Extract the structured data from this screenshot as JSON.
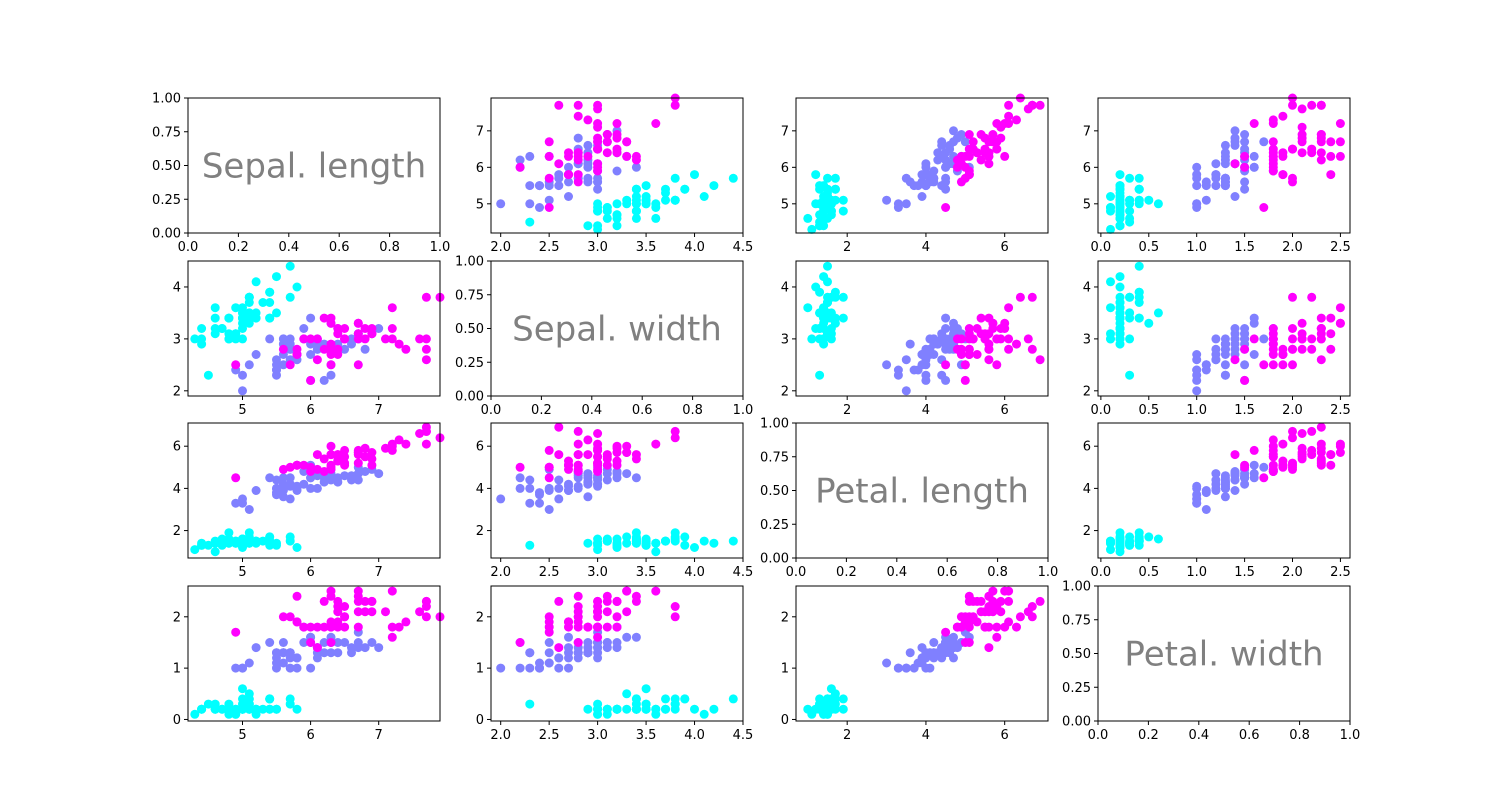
{
  "chart_data": {
    "type": "scatter",
    "layout": "4x4 scatter matrix",
    "variables": [
      "Sepal. length",
      "Sepal. width",
      "Petal. length",
      "Petal. width"
    ],
    "class_colors": [
      "#00ffff",
      "#8080ff",
      "#ff00ff"
    ],
    "diagonal_axis": {
      "xlim": [
        0,
        1
      ],
      "ylim": [
        0,
        1
      ],
      "xticks": [
        "0.0",
        "0.2",
        "0.4",
        "0.6",
        "0.8",
        "1.0"
      ],
      "yticks": [
        "0.00",
        "0.25",
        "0.50",
        "0.75",
        "1.00"
      ]
    },
    "axes": {
      "sepal_length": {
        "lim": [
          4.2,
          7.9
        ],
        "ticks": [
          5,
          6,
          7
        ],
        "labels": [
          "5",
          "6",
          "7"
        ]
      },
      "sepal_width": {
        "lim": [
          1.9,
          4.5
        ],
        "ticks": [
          2.0,
          2.5,
          3.0,
          3.5,
          4.0,
          4.5
        ],
        "labels": [
          "2.0",
          "2.5",
          "3.0",
          "3.5",
          "4.0",
          "4.5"
        ]
      },
      "sepal_width_y": {
        "lim": [
          1.9,
          4.5
        ],
        "ticks": [
          2,
          3,
          4
        ],
        "labels": [
          "2",
          "3",
          "4"
        ]
      },
      "petal_length": {
        "lim": [
          0.7,
          7.1
        ],
        "ticks": [
          2,
          4,
          6
        ],
        "labels": [
          "2",
          "4",
          "6"
        ]
      },
      "petal_width": {
        "lim": [
          -0.03,
          2.6
        ],
        "ticks": [
          0.0,
          0.5,
          1.0,
          1.5,
          2.0,
          2.5
        ],
        "labels": [
          "0.0",
          "0.5",
          "1.0",
          "1.5",
          "2.0",
          "2.5"
        ]
      },
      "petal_width_y": {
        "lim": [
          -0.03,
          2.6
        ],
        "ticks": [
          0,
          1,
          2
        ],
        "labels": [
          "0",
          "1",
          "2"
        ]
      }
    },
    "classes": [
      [
        [
          5.1,
          3.5,
          1.4,
          0.2
        ],
        [
          4.9,
          3.0,
          1.4,
          0.2
        ],
        [
          4.7,
          3.2,
          1.3,
          0.2
        ],
        [
          4.6,
          3.1,
          1.5,
          0.2
        ],
        [
          5.0,
          3.6,
          1.4,
          0.2
        ],
        [
          5.4,
          3.9,
          1.7,
          0.4
        ],
        [
          4.6,
          3.4,
          1.4,
          0.3
        ],
        [
          5.0,
          3.4,
          1.5,
          0.2
        ],
        [
          4.4,
          2.9,
          1.4,
          0.2
        ],
        [
          4.9,
          3.1,
          1.5,
          0.1
        ],
        [
          5.4,
          3.7,
          1.5,
          0.2
        ],
        [
          4.8,
          3.4,
          1.6,
          0.2
        ],
        [
          4.8,
          3.0,
          1.4,
          0.1
        ],
        [
          4.3,
          3.0,
          1.1,
          0.1
        ],
        [
          5.8,
          4.0,
          1.2,
          0.2
        ],
        [
          5.7,
          4.4,
          1.5,
          0.4
        ],
        [
          5.4,
          3.9,
          1.3,
          0.4
        ],
        [
          5.1,
          3.5,
          1.4,
          0.3
        ],
        [
          5.7,
          3.8,
          1.7,
          0.3
        ],
        [
          5.1,
          3.8,
          1.5,
          0.3
        ],
        [
          5.4,
          3.4,
          1.7,
          0.2
        ],
        [
          5.1,
          3.7,
          1.5,
          0.4
        ],
        [
          4.6,
          3.6,
          1.0,
          0.2
        ],
        [
          5.1,
          3.3,
          1.7,
          0.5
        ],
        [
          4.8,
          3.4,
          1.9,
          0.2
        ],
        [
          5.0,
          3.0,
          1.6,
          0.2
        ],
        [
          5.0,
          3.4,
          1.6,
          0.4
        ],
        [
          5.2,
          3.5,
          1.5,
          0.2
        ],
        [
          5.2,
          3.4,
          1.4,
          0.2
        ],
        [
          4.7,
          3.2,
          1.6,
          0.2
        ],
        [
          4.8,
          3.1,
          1.6,
          0.2
        ],
        [
          5.4,
          3.4,
          1.5,
          0.4
        ],
        [
          5.2,
          4.1,
          1.5,
          0.1
        ],
        [
          5.5,
          4.2,
          1.4,
          0.2
        ],
        [
          4.9,
          3.1,
          1.5,
          0.2
        ],
        [
          5.0,
          3.2,
          1.2,
          0.2
        ],
        [
          5.5,
          3.5,
          1.3,
          0.2
        ],
        [
          4.9,
          3.6,
          1.4,
          0.1
        ],
        [
          4.4,
          3.0,
          1.3,
          0.2
        ],
        [
          5.1,
          3.4,
          1.5,
          0.2
        ],
        [
          5.0,
          3.5,
          1.3,
          0.3
        ],
        [
          4.5,
          2.3,
          1.3,
          0.3
        ],
        [
          4.4,
          3.2,
          1.3,
          0.2
        ],
        [
          5.0,
          3.5,
          1.6,
          0.6
        ],
        [
          5.1,
          3.8,
          1.9,
          0.4
        ],
        [
          4.8,
          3.0,
          1.4,
          0.3
        ],
        [
          5.1,
          3.8,
          1.6,
          0.2
        ],
        [
          4.6,
          3.2,
          1.4,
          0.2
        ],
        [
          5.3,
          3.7,
          1.5,
          0.2
        ],
        [
          5.0,
          3.3,
          1.4,
          0.2
        ]
      ],
      [
        [
          7.0,
          3.2,
          4.7,
          1.4
        ],
        [
          6.4,
          3.2,
          4.5,
          1.5
        ],
        [
          6.9,
          3.1,
          4.9,
          1.5
        ],
        [
          5.5,
          2.3,
          4.0,
          1.3
        ],
        [
          6.5,
          2.8,
          4.6,
          1.5
        ],
        [
          5.7,
          2.8,
          4.5,
          1.3
        ],
        [
          6.3,
          3.3,
          4.7,
          1.6
        ],
        [
          4.9,
          2.4,
          3.3,
          1.0
        ],
        [
          6.6,
          2.9,
          4.6,
          1.3
        ],
        [
          5.2,
          2.7,
          3.9,
          1.4
        ],
        [
          5.0,
          2.0,
          3.5,
          1.0
        ],
        [
          5.9,
          3.0,
          4.2,
          1.5
        ],
        [
          6.0,
          2.2,
          4.0,
          1.0
        ],
        [
          6.1,
          2.9,
          4.7,
          1.4
        ],
        [
          5.6,
          2.9,
          3.6,
          1.3
        ],
        [
          6.7,
          3.1,
          4.4,
          1.4
        ],
        [
          5.6,
          3.0,
          4.5,
          1.5
        ],
        [
          5.8,
          2.7,
          4.1,
          1.0
        ],
        [
          6.2,
          2.2,
          4.5,
          1.5
        ],
        [
          5.6,
          2.5,
          3.9,
          1.1
        ],
        [
          5.9,
          3.2,
          4.8,
          1.8
        ],
        [
          6.1,
          2.8,
          4.0,
          1.3
        ],
        [
          6.3,
          2.5,
          4.9,
          1.5
        ],
        [
          6.1,
          2.8,
          4.7,
          1.2
        ],
        [
          6.4,
          2.9,
          4.3,
          1.3
        ],
        [
          6.6,
          3.0,
          4.4,
          1.4
        ],
        [
          6.8,
          2.8,
          4.8,
          1.4
        ],
        [
          6.7,
          3.0,
          5.0,
          1.7
        ],
        [
          6.0,
          2.9,
          4.5,
          1.5
        ],
        [
          5.7,
          2.6,
          3.5,
          1.0
        ],
        [
          5.5,
          2.4,
          3.8,
          1.1
        ],
        [
          5.5,
          2.4,
          3.7,
          1.0
        ],
        [
          5.8,
          2.7,
          3.9,
          1.2
        ],
        [
          6.0,
          2.7,
          5.1,
          1.6
        ],
        [
          5.4,
          3.0,
          4.5,
          1.5
        ],
        [
          6.0,
          3.4,
          4.5,
          1.6
        ],
        [
          6.7,
          3.1,
          4.7,
          1.5
        ],
        [
          6.3,
          2.3,
          4.4,
          1.3
        ],
        [
          5.6,
          3.0,
          4.1,
          1.3
        ],
        [
          5.5,
          2.5,
          4.0,
          1.3
        ],
        [
          5.5,
          2.6,
          4.4,
          1.2
        ],
        [
          6.1,
          3.0,
          4.6,
          1.4
        ],
        [
          5.8,
          2.6,
          4.0,
          1.2
        ],
        [
          5.0,
          2.3,
          3.3,
          1.0
        ],
        [
          5.6,
          2.7,
          4.2,
          1.3
        ],
        [
          5.7,
          3.0,
          4.2,
          1.2
        ],
        [
          5.7,
          2.9,
          4.2,
          1.3
        ],
        [
          6.2,
          2.9,
          4.3,
          1.3
        ],
        [
          5.1,
          2.5,
          3.0,
          1.1
        ],
        [
          5.7,
          2.8,
          4.1,
          1.3
        ]
      ],
      [
        [
          6.3,
          3.3,
          6.0,
          2.5
        ],
        [
          5.8,
          2.7,
          5.1,
          1.9
        ],
        [
          7.1,
          3.0,
          5.9,
          2.1
        ],
        [
          6.3,
          2.9,
          5.6,
          1.8
        ],
        [
          6.5,
          3.0,
          5.8,
          2.2
        ],
        [
          7.6,
          3.0,
          6.6,
          2.1
        ],
        [
          4.9,
          2.5,
          4.5,
          1.7
        ],
        [
          7.3,
          2.9,
          6.3,
          1.8
        ],
        [
          6.7,
          2.5,
          5.8,
          1.8
        ],
        [
          7.2,
          3.6,
          6.1,
          2.5
        ],
        [
          6.5,
          3.2,
          5.1,
          2.0
        ],
        [
          6.4,
          2.7,
          5.3,
          1.9
        ],
        [
          6.8,
          3.0,
          5.5,
          2.1
        ],
        [
          5.7,
          2.5,
          5.0,
          2.0
        ],
        [
          5.8,
          2.8,
          5.1,
          2.4
        ],
        [
          6.4,
          3.2,
          5.3,
          2.3
        ],
        [
          6.5,
          3.0,
          5.5,
          1.8
        ],
        [
          7.7,
          3.8,
          6.7,
          2.2
        ],
        [
          7.7,
          2.6,
          6.9,
          2.3
        ],
        [
          6.0,
          2.2,
          5.0,
          1.5
        ],
        [
          6.9,
          3.2,
          5.7,
          2.3
        ],
        [
          5.6,
          2.8,
          4.9,
          2.0
        ],
        [
          7.7,
          2.8,
          6.7,
          2.0
        ],
        [
          6.3,
          2.7,
          4.9,
          1.8
        ],
        [
          6.7,
          3.3,
          5.7,
          2.1
        ],
        [
          7.2,
          3.2,
          6.0,
          1.8
        ],
        [
          6.2,
          2.8,
          4.8,
          1.8
        ],
        [
          6.1,
          3.0,
          4.9,
          1.8
        ],
        [
          6.4,
          2.8,
          5.6,
          2.1
        ],
        [
          7.2,
          3.0,
          5.8,
          1.6
        ],
        [
          7.4,
          2.8,
          6.1,
          1.9
        ],
        [
          7.9,
          3.8,
          6.4,
          2.0
        ],
        [
          6.4,
          2.8,
          5.6,
          2.2
        ],
        [
          6.3,
          2.8,
          5.1,
          1.5
        ],
        [
          6.1,
          2.6,
          5.6,
          1.4
        ],
        [
          7.7,
          3.0,
          6.1,
          2.3
        ],
        [
          6.3,
          3.4,
          5.6,
          2.4
        ],
        [
          6.4,
          3.1,
          5.5,
          1.8
        ],
        [
          6.0,
          3.0,
          4.8,
          1.8
        ],
        [
          6.9,
          3.1,
          5.4,
          2.1
        ],
        [
          6.7,
          3.1,
          5.6,
          2.4
        ],
        [
          6.9,
          3.1,
          5.1,
          2.3
        ],
        [
          5.8,
          2.7,
          5.1,
          1.9
        ],
        [
          6.8,
          3.2,
          5.9,
          2.3
        ],
        [
          6.7,
          3.3,
          5.7,
          2.5
        ],
        [
          6.7,
          3.0,
          5.2,
          2.3
        ],
        [
          6.3,
          2.5,
          5.0,
          1.9
        ],
        [
          6.5,
          3.0,
          5.2,
          2.0
        ],
        [
          6.2,
          3.4,
          5.4,
          2.3
        ],
        [
          5.9,
          3.0,
          5.1,
          1.8
        ]
      ]
    ]
  }
}
